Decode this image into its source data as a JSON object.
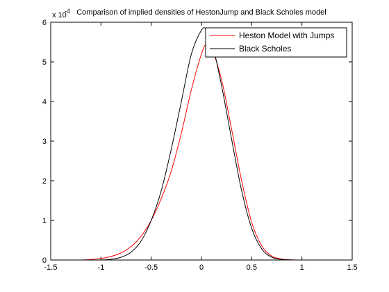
{
  "chart_data": {
    "type": "line",
    "title": "Comparison of implied densities of HestonJump and Black Scholes model",
    "xlabel": "",
    "ylabel": "",
    "y_multiplier_label": "x 10",
    "y_multiplier_exp": "-4",
    "xlim": [
      -1.5,
      1.5
    ],
    "ylim": [
      0,
      6
    ],
    "xticks": [
      -1.5,
      -1,
      -0.5,
      0,
      0.5,
      1,
      1.5
    ],
    "xtick_labels": [
      "-1.5",
      "-1",
      "-0.5",
      "0",
      "0.5",
      "1",
      "1.5"
    ],
    "yticks": [
      0,
      1,
      2,
      3,
      4,
      5,
      6
    ],
    "ytick_labels": [
      "0",
      "1",
      "2",
      "3",
      "4",
      "5",
      "6"
    ],
    "grid": false,
    "legend_position": "top-right",
    "series": [
      {
        "name": "Heston Model with Jumps",
        "color": "#ff0000",
        "x": [
          -1.5,
          -1.2,
          -1.0,
          -0.9,
          -0.8,
          -0.7,
          -0.6,
          -0.5,
          -0.4,
          -0.3,
          -0.2,
          -0.1,
          0.0,
          0.05,
          0.1,
          0.2,
          0.3,
          0.4,
          0.5,
          0.6,
          0.7,
          0.8,
          0.9,
          1.0,
          1.2,
          1.5
        ],
        "y": [
          0.0,
          0.0,
          0.04,
          0.09,
          0.18,
          0.34,
          0.6,
          1.0,
          1.55,
          2.25,
          3.2,
          4.3,
          5.2,
          5.45,
          5.35,
          4.55,
          3.3,
          2.0,
          0.95,
          0.36,
          0.1,
          0.025,
          0.005,
          0.0,
          0.0,
          0.0
        ]
      },
      {
        "name": "Black Scholes",
        "color": "#000000",
        "x": [
          -1.5,
          -1.2,
          -1.0,
          -0.9,
          -0.8,
          -0.7,
          -0.6,
          -0.5,
          -0.4,
          -0.3,
          -0.2,
          -0.1,
          0.0,
          0.05,
          0.1,
          0.2,
          0.3,
          0.4,
          0.5,
          0.6,
          0.7,
          0.8,
          0.9,
          1.0,
          1.2,
          1.5
        ],
        "y": [
          0.0,
          0.0,
          0.0,
          0.02,
          0.07,
          0.2,
          0.48,
          1.0,
          1.75,
          2.8,
          4.0,
          5.2,
          5.8,
          5.82,
          5.55,
          4.4,
          3.05,
          1.75,
          0.8,
          0.28,
          0.07,
          0.015,
          0.002,
          0.0,
          0.0,
          0.0
        ]
      }
    ]
  }
}
